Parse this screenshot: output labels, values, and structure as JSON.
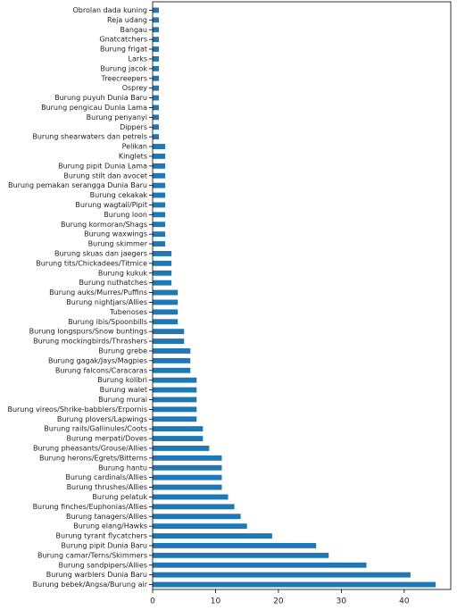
{
  "chart_data": {
    "type": "barh",
    "color": "#1f77b4",
    "categories": [
      "Obrolan dada kuning",
      "Reja udang",
      "Bangau",
      "Gnatcatchers",
      "Burung frigat",
      "Larks",
      "Burung jacok",
      "Treecreepers",
      "Osprey",
      "Burung puyuh Dunia Baru",
      "Burung pengicau Dunia Lama",
      "Burung penyanyi",
      "Dippers",
      "Burung shearwaters dan petrels",
      "Pelikan",
      "Kinglets",
      "Burung pipit Dunia Lama",
      "Burung stilt dan avocet",
      "Burung pemakan serangga Dunia Baru",
      "Burung cekakak",
      "Burung wagtail/Pipit",
      "Burung loon",
      "Burung kormoran/Shags",
      "Burung waxwings",
      "Burung skimmer",
      "Burung skuas dan jaegers",
      "Burung tits/Chickadees/Titmice",
      "Burung kukuk",
      "Burung nuthatches",
      "Burung auks/Murres/Puffins",
      "Burung nightjars/Allies",
      "Tubenoses",
      "Burung ibis/Spoonbills",
      "Burung longspurs/Snow buntings",
      "Burung mockingbirds/Thrashers",
      "Burung grebe",
      "Burung gagak/Jays/Magpies",
      "Burung falcons/Caracaras",
      "Burung kolibri",
      "Burung walet",
      "Burung murai",
      "Burung vireos/Shrike-babblers/Erpornis",
      "Burung plovers/Lapwings",
      "Burung rails/Gallinules/Coots",
      "Burung merpati/Doves",
      "Burung pheasants/Grouse/Allies",
      "Burung herons/Egrets/Bitterns",
      "Burung hantu",
      "Burung cardinals/Allies",
      "Burung thrushes/Allies",
      "Burung pelatuk",
      "Burung finches/Euphonias/Allies",
      "Burung tanagers/Allies",
      "Burung elang/Hawks",
      "Burung tyrant flycatchers",
      "Burung pipit Dunia Baru",
      "Burung camar/Terns/Skimmers",
      "Burung sandpipers/Allies",
      "Burung warblers Dunia Baru",
      "Burung bebek/Angsa/Burung air"
    ],
    "values": [
      1,
      1,
      1,
      1,
      1,
      1,
      1,
      1,
      1,
      1,
      1,
      1,
      1,
      1,
      2,
      2,
      2,
      2,
      2,
      2,
      2,
      2,
      2,
      2,
      2,
      3,
      3,
      3,
      3,
      4,
      4,
      4,
      4,
      5,
      5,
      6,
      6,
      6,
      7,
      7,
      7,
      7,
      7,
      8,
      8,
      9,
      11,
      11,
      11,
      11,
      12,
      13,
      14,
      15,
      19,
      26,
      28,
      34,
      41,
      45
    ],
    "xlim": [
      0,
      47.4
    ],
    "xticks": [
      0,
      10,
      20,
      30,
      40
    ]
  }
}
